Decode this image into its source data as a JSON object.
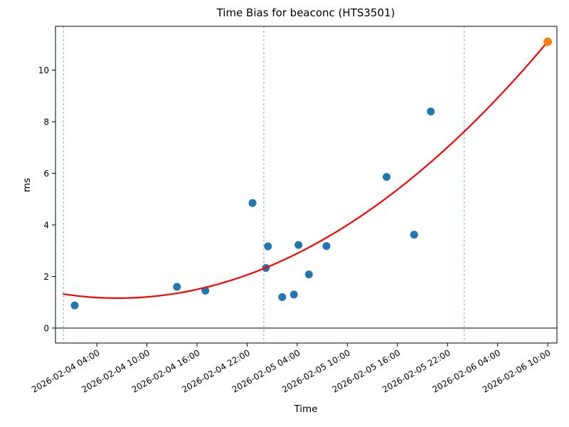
{
  "chart_data": {
    "type": "scatter",
    "title": "Time Bias for beaconc (HTS3501)",
    "xlabel": "Time",
    "ylabel": "ms",
    "legend_position": "none",
    "grid": false,
    "x_epoch": "2026-02-04 00:00",
    "x_tick_hours": [
      4,
      10,
      16,
      22,
      28,
      34,
      40,
      46,
      52,
      58
    ],
    "x_tick_labels": [
      "2026-02-04 04:00",
      "2026-02-04 10:00",
      "2026-02-04 16:00",
      "2026-02-04 22:00",
      "2026-02-05 04:00",
      "2026-02-05 10:00",
      "2026-02-05 16:00",
      "2026-02-05 22:00",
      "2026-02-06 04:00",
      "2026-02-06 10:00"
    ],
    "y_ticks": [
      0,
      2,
      4,
      6,
      8,
      10
    ],
    "xlim_hours": [
      -0.95,
      59.1
    ],
    "ylim": [
      -0.58,
      11.7
    ],
    "zero_line_y": 0,
    "day_boundary_lines_hours": [
      0,
      24,
      48
    ],
    "points": [
      {
        "time": "2026-02-04 01:20",
        "hours": 1.35,
        "ms": 0.88
      },
      {
        "time": "2026-02-04 13:35",
        "hours": 13.6,
        "ms": 1.6
      },
      {
        "time": "2026-02-04 17:00",
        "hours": 17.0,
        "ms": 1.45
      },
      {
        "time": "2026-02-04 22:40",
        "hours": 22.65,
        "ms": 4.85
      },
      {
        "time": "2026-02-05 00:15",
        "hours": 24.25,
        "ms": 2.33
      },
      {
        "time": "2026-02-05 00:30",
        "hours": 24.5,
        "ms": 3.17
      },
      {
        "time": "2026-02-05 02:10",
        "hours": 26.2,
        "ms": 1.2
      },
      {
        "time": "2026-02-05 03:35",
        "hours": 27.6,
        "ms": 1.3
      },
      {
        "time": "2026-02-05 04:10",
        "hours": 28.15,
        "ms": 3.22
      },
      {
        "time": "2026-02-05 05:25",
        "hours": 29.4,
        "ms": 2.08
      },
      {
        "time": "2026-02-05 07:30",
        "hours": 31.5,
        "ms": 3.18
      },
      {
        "time": "2026-02-05 14:40",
        "hours": 38.7,
        "ms": 5.86
      },
      {
        "time": "2026-02-05 18:00",
        "hours": 42.0,
        "ms": 3.62
      },
      {
        "time": "2026-02-05 20:00",
        "hours": 44.0,
        "ms": 8.4
      }
    ],
    "predicted_point": {
      "time": "2026-02-06 10:00",
      "hours": 58.0,
      "ms": 11.1
    },
    "fit_curve": {
      "type": "quadratic",
      "a": 0.00375,
      "t0": 6.5,
      "c": 1.16,
      "t_start": 0,
      "t_end": 58
    },
    "colors": {
      "scatter": "#1f77b4",
      "predicted": "#ff7f0e",
      "fit": "#ff0000",
      "day_line": "#74aed4",
      "axis": "#000000",
      "background": "#ffffff"
    }
  }
}
